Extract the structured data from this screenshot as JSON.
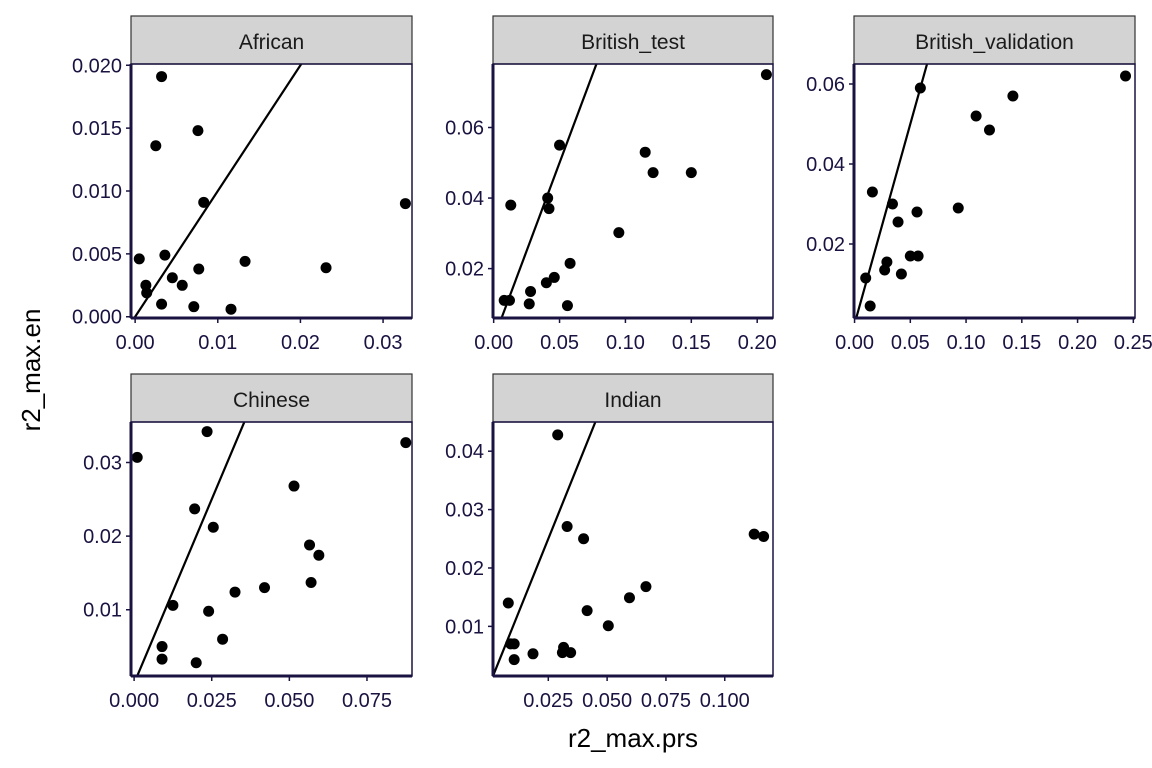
{
  "figure": {
    "xlabel": "r2_max.prs",
    "ylabel": "r2_max.en"
  },
  "style": {
    "point_color": "#000000",
    "strip_fill": "#d3d3d3",
    "panel_border": "#1a1240",
    "tick_text": "#1a1240"
  },
  "chart_data": [
    {
      "type": "scatter",
      "title": "African",
      "xlim": [
        -0.0005,
        0.0335
      ],
      "ylim": [
        -0.0001,
        0.0201
      ],
      "xticks": [
        0,
        0.01,
        0.02,
        0.03
      ],
      "xtick_labels": [
        "0.00",
        "0.01",
        "0.02",
        "0.03"
      ],
      "yticks": [
        0,
        0.005,
        0.01,
        0.015,
        0.02
      ],
      "ytick_labels": [
        "0.000",
        "0.005",
        "0.010",
        "0.015",
        "0.020"
      ],
      "reference_line": {
        "slope": 1,
        "intercept": 0
      },
      "x": [
        0.0032,
        0.0076,
        0.0025,
        0.0083,
        0.0005,
        0.0036,
        0.0013,
        0.0014,
        0.0045,
        0.0057,
        0.0077,
        0.0032,
        0.0071,
        0.0116,
        0.0133,
        0.0231,
        0.0327
      ],
      "y": [
        0.0191,
        0.0148,
        0.0136,
        0.0091,
        0.0046,
        0.0049,
        0.0025,
        0.0019,
        0.0031,
        0.0025,
        0.0038,
        0.001,
        0.0008,
        0.0006,
        0.0044,
        0.0039,
        0.009
      ]
    },
    {
      "type": "scatter",
      "title": "British_test",
      "xlim": [
        -0.0005,
        0.212
      ],
      "ylim": [
        0.006,
        0.078
      ],
      "xticks": [
        0,
        0.05,
        0.1,
        0.15,
        0.2
      ],
      "xtick_labels": [
        "0.00",
        "0.05",
        "0.10",
        "0.15",
        "0.20"
      ],
      "yticks": [
        0.02,
        0.04,
        0.06
      ],
      "ytick_labels": [
        "0.02",
        "0.04",
        "0.06"
      ],
      "reference_line": {
        "slope": 1,
        "intercept": 0
      },
      "x": [
        0.008,
        0.012,
        0.013,
        0.027,
        0.028,
        0.04,
        0.042,
        0.041,
        0.046,
        0.05,
        0.058,
        0.056,
        0.095,
        0.115,
        0.121,
        0.15,
        0.207
      ],
      "y": [
        0.011,
        0.011,
        0.038,
        0.01,
        0.0135,
        0.016,
        0.037,
        0.04,
        0.0175,
        0.055,
        0.0215,
        0.0095,
        0.0302,
        0.053,
        0.0472,
        0.0472,
        0.075
      ]
    },
    {
      "type": "scatter",
      "title": "British_validation",
      "xlim": [
        -0.0005,
        0.2515
      ],
      "ylim": [
        0.0015,
        0.065
      ],
      "xticks": [
        0,
        0.05,
        0.1,
        0.15,
        0.2,
        0.25
      ],
      "xtick_labels": [
        "0.00",
        "0.05",
        "0.10",
        "0.15",
        "0.20",
        "0.25"
      ],
      "yticks": [
        0.02,
        0.04,
        0.06
      ],
      "ytick_labels": [
        "0.02",
        "0.04",
        "0.06"
      ],
      "reference_line": {
        "slope": 1,
        "intercept": 0
      },
      "x": [
        0.01,
        0.014,
        0.016,
        0.027,
        0.029,
        0.034,
        0.039,
        0.042,
        0.05,
        0.056,
        0.057,
        0.059,
        0.093,
        0.109,
        0.121,
        0.142,
        0.243
      ],
      "y": [
        0.0115,
        0.0045,
        0.033,
        0.0135,
        0.0155,
        0.03,
        0.0255,
        0.0125,
        0.017,
        0.028,
        0.017,
        0.059,
        0.029,
        0.052,
        0.0485,
        0.057,
        0.062
      ]
    },
    {
      "type": "scatter",
      "title": "Chinese",
      "xlim": [
        -0.001,
        0.0895
      ],
      "ylim": [
        0.001,
        0.0355
      ],
      "xticks": [
        0,
        0.025,
        0.05,
        0.075
      ],
      "xtick_labels": [
        "0.000",
        "0.025",
        "0.050",
        "0.075"
      ],
      "yticks": [
        0.01,
        0.02,
        0.03
      ],
      "ytick_labels": [
        "0.01",
        "0.02",
        "0.03"
      ],
      "reference_line": {
        "slope": 1,
        "intercept": 0
      },
      "x": [
        0.001,
        0.009,
        0.009,
        0.0125,
        0.0195,
        0.02,
        0.0235,
        0.024,
        0.0255,
        0.0285,
        0.0325,
        0.042,
        0.0515,
        0.0565,
        0.057,
        0.0595,
        0.0875
      ],
      "y": [
        0.0307,
        0.005,
        0.0033,
        0.0106,
        0.0237,
        0.0028,
        0.0342,
        0.0098,
        0.0212,
        0.006,
        0.0124,
        0.013,
        0.0268,
        0.0188,
        0.0137,
        0.0174,
        0.0327
      ]
    },
    {
      "type": "scatter",
      "title": "Indian",
      "xlim": [
        0.0015,
        0.1205
      ],
      "ylim": [
        0.0015,
        0.045
      ],
      "xticks": [
        0.025,
        0.05,
        0.075,
        0.1
      ],
      "xtick_labels": [
        "0.025",
        "0.050",
        "0.075",
        "0.100"
      ],
      "yticks": [
        0.01,
        0.02,
        0.03,
        0.04
      ],
      "ytick_labels": [
        "0.01",
        "0.02",
        "0.03",
        "0.04"
      ],
      "reference_line": {
        "slope": 1,
        "intercept": 0
      },
      "x": [
        0.008,
        0.009,
        0.0105,
        0.0105,
        0.0185,
        0.029,
        0.031,
        0.0315,
        0.033,
        0.0345,
        0.04,
        0.0415,
        0.0505,
        0.0595,
        0.0665,
        0.1125,
        0.1165
      ],
      "y": [
        0.014,
        0.007,
        0.007,
        0.0043,
        0.0053,
        0.0428,
        0.0055,
        0.0064,
        0.0271,
        0.0055,
        0.025,
        0.0127,
        0.0101,
        0.0149,
        0.0168,
        0.0258,
        0.0254
      ]
    }
  ]
}
